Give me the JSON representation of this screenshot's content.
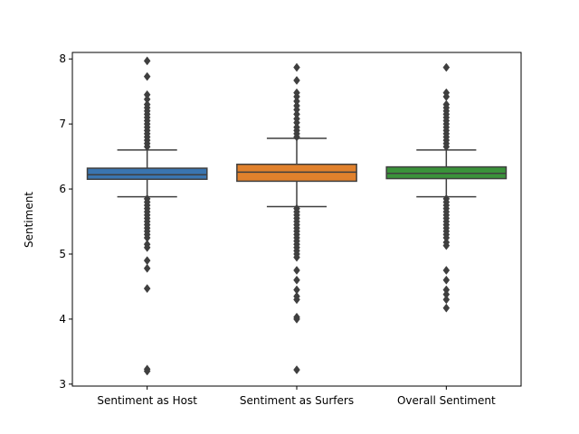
{
  "chart_data": {
    "type": "box",
    "title": "",
    "xlabel": "",
    "ylabel": "Sentiment",
    "ylim": [
      2.97,
      8.1
    ],
    "yticks": [
      3,
      4,
      5,
      6,
      7,
      8
    ],
    "grid": false,
    "categories": [
      "Sentiment as Host",
      "Sentiment as Surfers",
      "Overall Sentiment"
    ],
    "series": [
      {
        "color": "#3a75af",
        "whisker_low": 5.88,
        "q1": 6.15,
        "median": 6.22,
        "q3": 6.32,
        "whisker_high": 6.6,
        "outliers": [
          7.97,
          7.73,
          7.45,
          7.38,
          7.3,
          7.25,
          7.2,
          7.15,
          7.1,
          7.05,
          7.0,
          6.95,
          6.9,
          6.85,
          6.8,
          6.75,
          6.7,
          6.65,
          5.85,
          5.8,
          5.75,
          5.7,
          5.65,
          5.6,
          5.55,
          5.5,
          5.45,
          5.4,
          5.35,
          5.3,
          5.25,
          5.15,
          5.1,
          4.9,
          4.78,
          4.47,
          3.23,
          3.2
        ]
      },
      {
        "color": "#e1812c",
        "whisker_low": 5.73,
        "q1": 6.12,
        "median": 6.26,
        "q3": 6.38,
        "whisker_high": 6.78,
        "outliers": [
          7.87,
          7.67,
          7.48,
          7.42,
          7.35,
          7.28,
          7.22,
          7.15,
          7.08,
          7.02,
          6.95,
          6.9,
          6.85,
          6.8,
          5.7,
          5.65,
          5.6,
          5.55,
          5.5,
          5.45,
          5.4,
          5.35,
          5.3,
          5.25,
          5.2,
          5.15,
          5.1,
          5.05,
          5.0,
          4.95,
          4.75,
          4.6,
          4.45,
          4.35,
          4.3,
          4.03,
          4.0,
          3.22
        ]
      },
      {
        "color": "#3a923a",
        "whisker_low": 5.88,
        "q1": 6.16,
        "median": 6.24,
        "q3": 6.34,
        "whisker_high": 6.6,
        "outliers": [
          7.87,
          7.48,
          7.42,
          7.3,
          7.25,
          7.2,
          7.15,
          7.1,
          7.05,
          7.0,
          6.95,
          6.9,
          6.85,
          6.8,
          6.75,
          6.7,
          6.65,
          5.85,
          5.8,
          5.75,
          5.7,
          5.65,
          5.6,
          5.55,
          5.5,
          5.45,
          5.4,
          5.35,
          5.3,
          5.25,
          5.18,
          5.13,
          4.75,
          4.6,
          4.45,
          4.38,
          4.3,
          4.17
        ]
      }
    ]
  }
}
